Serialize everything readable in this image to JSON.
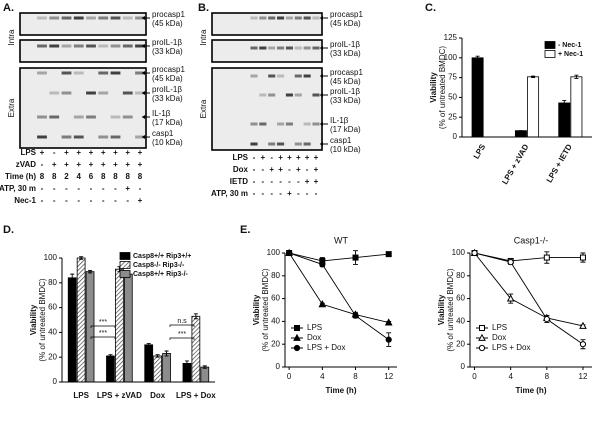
{
  "panels": [
    {
      "label": "A.",
      "sections": [
        "Intra",
        "Extra"
      ],
      "bands": [
        {
          "name": "procasp1",
          "size": "(45 kDa)"
        },
        {
          "name": "proIL-1β",
          "size": "(33 kDa)"
        },
        {
          "name": "procasp1",
          "size": "(45 kDa)"
        },
        {
          "name": "proIL-1β",
          "size": "(33 kDa)"
        },
        {
          "name": "IL-1β",
          "size": "(17 kDa)"
        },
        {
          "name": "casp1",
          "size": "(10 kDa)"
        }
      ],
      "rows": [
        {
          "name": "LPS",
          "marks": [
            "+",
            "-",
            "+",
            "+",
            "+",
            "+",
            "+",
            "+",
            "+"
          ]
        },
        {
          "name": "zVAD",
          "marks": [
            "-",
            "+",
            "+",
            "+",
            "+",
            "+",
            "+",
            "+",
            "+"
          ]
        },
        {
          "name": "Time (h)",
          "marks": [
            8,
            8,
            2,
            4,
            6,
            8,
            8,
            8,
            8
          ]
        },
        {
          "name": "ATP, 30 m",
          "marks": [
            "-",
            "-",
            "-",
            "-",
            "-",
            "-",
            "-",
            "+",
            "-"
          ]
        },
        {
          "name": "Nec-1",
          "marks": [
            "-",
            "-",
            "-",
            "-",
            "-",
            "-",
            "-",
            "-",
            "+"
          ]
        }
      ]
    },
    {
      "label": "B.",
      "sections": [
        "Intra",
        "Extra"
      ],
      "bands": [
        {
          "name": "procasp1",
          "size": "(45 kDa)"
        },
        {
          "name": "proIL-1β",
          "size": "(33 kDa)"
        },
        {
          "name": "procasp1",
          "size": "(45 kDa)"
        },
        {
          "name": "proIL-1β",
          "size": "(33 kDa)"
        },
        {
          "name": "IL-1β",
          "size": "(17 kDa)"
        },
        {
          "name": "casp1",
          "size": "(10 kDa)"
        }
      ],
      "rows": [
        {
          "name": "LPS",
          "marks": [
            "-",
            "+",
            "-",
            "+",
            "+",
            "+",
            "+",
            "+"
          ]
        },
        {
          "name": "Dox",
          "marks": [
            "-",
            "-",
            "+",
            "+",
            "-",
            "+",
            "-",
            "+"
          ]
        },
        {
          "name": "IETD",
          "marks": [
            "-",
            "-",
            "-",
            "-",
            "-",
            "-",
            "+",
            "+"
          ]
        },
        {
          "name": "ATP, 30 m",
          "marks": [
            "-",
            "-",
            "-",
            "-",
            "+",
            "-",
            "-",
            "-"
          ]
        }
      ]
    }
  ],
  "panel_labels": [
    "C.",
    "D.",
    "E."
  ],
  "chart_data": [
    {
      "type": "bar",
      "ylabel": [
        "Viability",
        "(% of untreated BMDC)"
      ],
      "categories": [
        "LPS",
        "LPS + zVAD",
        "LPS + IETD"
      ],
      "ylim": [
        0,
        125
      ],
      "yticks": [
        0,
        25,
        50,
        75,
        100,
        125
      ],
      "legend": "upper right",
      "series": [
        {
          "name": "- Nec-1",
          "color": "#000000",
          "values": [
            100,
            8,
            43
          ],
          "errors": [
            2,
            0,
            3
          ]
        },
        {
          "name": "+ Nec-1",
          "color": "#ffffff",
          "values": [
            null,
            76,
            76
          ],
          "errors": [
            null,
            1,
            2
          ]
        }
      ]
    },
    {
      "type": "bar",
      "ylabel": [
        "Viability",
        "(% of untreated BMDC)"
      ],
      "categories": [
        "LPS",
        "LPS + zVAD",
        "Dox",
        "LPS + Dox"
      ],
      "ylim": [
        0,
        100
      ],
      "yticks": [
        0,
        20,
        40,
        60,
        80,
        100
      ],
      "legend": "upper right",
      "annotations": [
        "***",
        "***",
        "***",
        "n.s"
      ],
      "series": [
        {
          "name": "Casp8+/+ Rip3+/+",
          "color": "#000000",
          "values": [
            84,
            21,
            30,
            15
          ],
          "errors": [
            3,
            1,
            1,
            2
          ]
        },
        {
          "name": "Casp8-/- Rip3-/-",
          "color": "#555555",
          "pattern": "hatch",
          "values": [
            100,
            91,
            21,
            53
          ],
          "errors": [
            1,
            2,
            1,
            2
          ]
        },
        {
          "name": "Casp8+/+ Rip3-/-",
          "color": "#8c8c8c",
          "values": [
            89,
            87,
            23,
            12
          ],
          "errors": [
            1,
            2,
            2,
            1
          ]
        }
      ]
    },
    {
      "type": "line",
      "title": "WT",
      "xlabel": "Time (h)",
      "ylabel": [
        "Viability",
        "(% of untreated BMDC)"
      ],
      "x": [
        0,
        4,
        8,
        12
      ],
      "xlim": [
        -0.5,
        13
      ],
      "xticks": [
        0,
        4,
        8,
        12
      ],
      "ylim": [
        0,
        100
      ],
      "yticks": [
        0,
        20,
        40,
        60,
        80,
        100
      ],
      "legend": "lower left",
      "series": [
        {
          "name": "LPS",
          "color": "#000000",
          "marker": "square",
          "filled": true,
          "values": [
            100,
            93,
            96,
            99
          ],
          "errors": [
            0,
            3,
            6,
            1
          ]
        },
        {
          "name": "Dox",
          "color": "#000000",
          "marker": "triangle",
          "filled": true,
          "values": [
            100,
            55,
            46,
            39
          ],
          "errors": [
            0,
            1,
            2,
            1
          ]
        },
        {
          "name": "LPS + Dox",
          "color": "#000000",
          "marker": "circle",
          "filled": true,
          "values": [
            100,
            90,
            45,
            24
          ],
          "errors": [
            0,
            2,
            2,
            6
          ]
        }
      ]
    },
    {
      "type": "line",
      "title": "Casp1-/-",
      "xlabel": "Time (h)",
      "ylabel": [
        "Viability",
        "(% of untreated BMDC)"
      ],
      "x": [
        0,
        4,
        8,
        12
      ],
      "xlim": [
        -0.5,
        13
      ],
      "xticks": [
        0,
        4,
        8,
        12
      ],
      "ylim": [
        0,
        100
      ],
      "yticks": [
        0,
        20,
        40,
        60,
        80,
        100
      ],
      "legend": "lower left",
      "series": [
        {
          "name": "LPS",
          "color": "#000000",
          "marker": "square",
          "filled": false,
          "values": [
            100,
            93,
            96,
            96
          ],
          "errors": [
            0,
            2,
            5,
            4
          ]
        },
        {
          "name": "Dox",
          "color": "#000000",
          "marker": "triangle",
          "filled": false,
          "values": [
            100,
            60,
            43,
            36
          ],
          "errors": [
            0,
            4,
            2,
            1
          ]
        },
        {
          "name": "LPS + Dox",
          "color": "#000000",
          "marker": "circle",
          "filled": false,
          "values": [
            100,
            92,
            42,
            20
          ],
          "errors": [
            0,
            2,
            3,
            4
          ]
        }
      ]
    }
  ]
}
